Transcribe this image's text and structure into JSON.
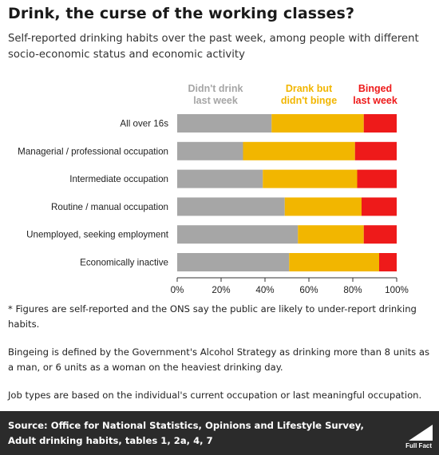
{
  "header": {
    "title": "Drink, the curse of the working classes?",
    "subtitle": "Self-reported drinking habits over the past week, among people with different socio-economic status and economic activity"
  },
  "chart_data": {
    "type": "bar",
    "orientation": "horizontal",
    "stacked": true,
    "categories": [
      "All over 16s",
      "Managerial / professional occupation",
      "Intermediate occupation",
      "Routine / manual occupation",
      "Unemployed, seeking employment",
      "Economically inactive"
    ],
    "series": [
      {
        "legend_lines": [
          "Didn't drink",
          "last week"
        ],
        "color": "#a6a6a6",
        "values": [
          43,
          30,
          39,
          49,
          55,
          51
        ]
      },
      {
        "legend_lines": [
          "Drank but",
          "didn't binge"
        ],
        "color": "#f2b600",
        "values": [
          42,
          51,
          43,
          35,
          30,
          41
        ]
      },
      {
        "legend_lines": [
          "Binged",
          "last week"
        ],
        "color": "#ee1a1a",
        "values": [
          15,
          19,
          18,
          16,
          15,
          8
        ]
      }
    ],
    "x_ticks": [
      "0%",
      "20%",
      "40%",
      "60%",
      "80%",
      "100%"
    ],
    "xlim": [
      0,
      100
    ],
    "legend_placement": "top",
    "grid": false
  },
  "notes": [
    "* Figures are self-reported and the ONS say the public are likely to under-report drinking habits.",
    "Bingeing is defined by the Government's Alcohol Strategy as drinking more than 8 units as a man, or 6 units as a woman on the heaviest drinking day.",
    "Job types are based on the individual's current occupation or last meaningful occupation."
  ],
  "footer": {
    "source_label": "Source:",
    "source_text": "Office for National Statistics, Opinions and Lifestyle Survey, Adult drinking habits, tables 1, 2a, 4, 7",
    "logo_text": "Full Fact"
  }
}
